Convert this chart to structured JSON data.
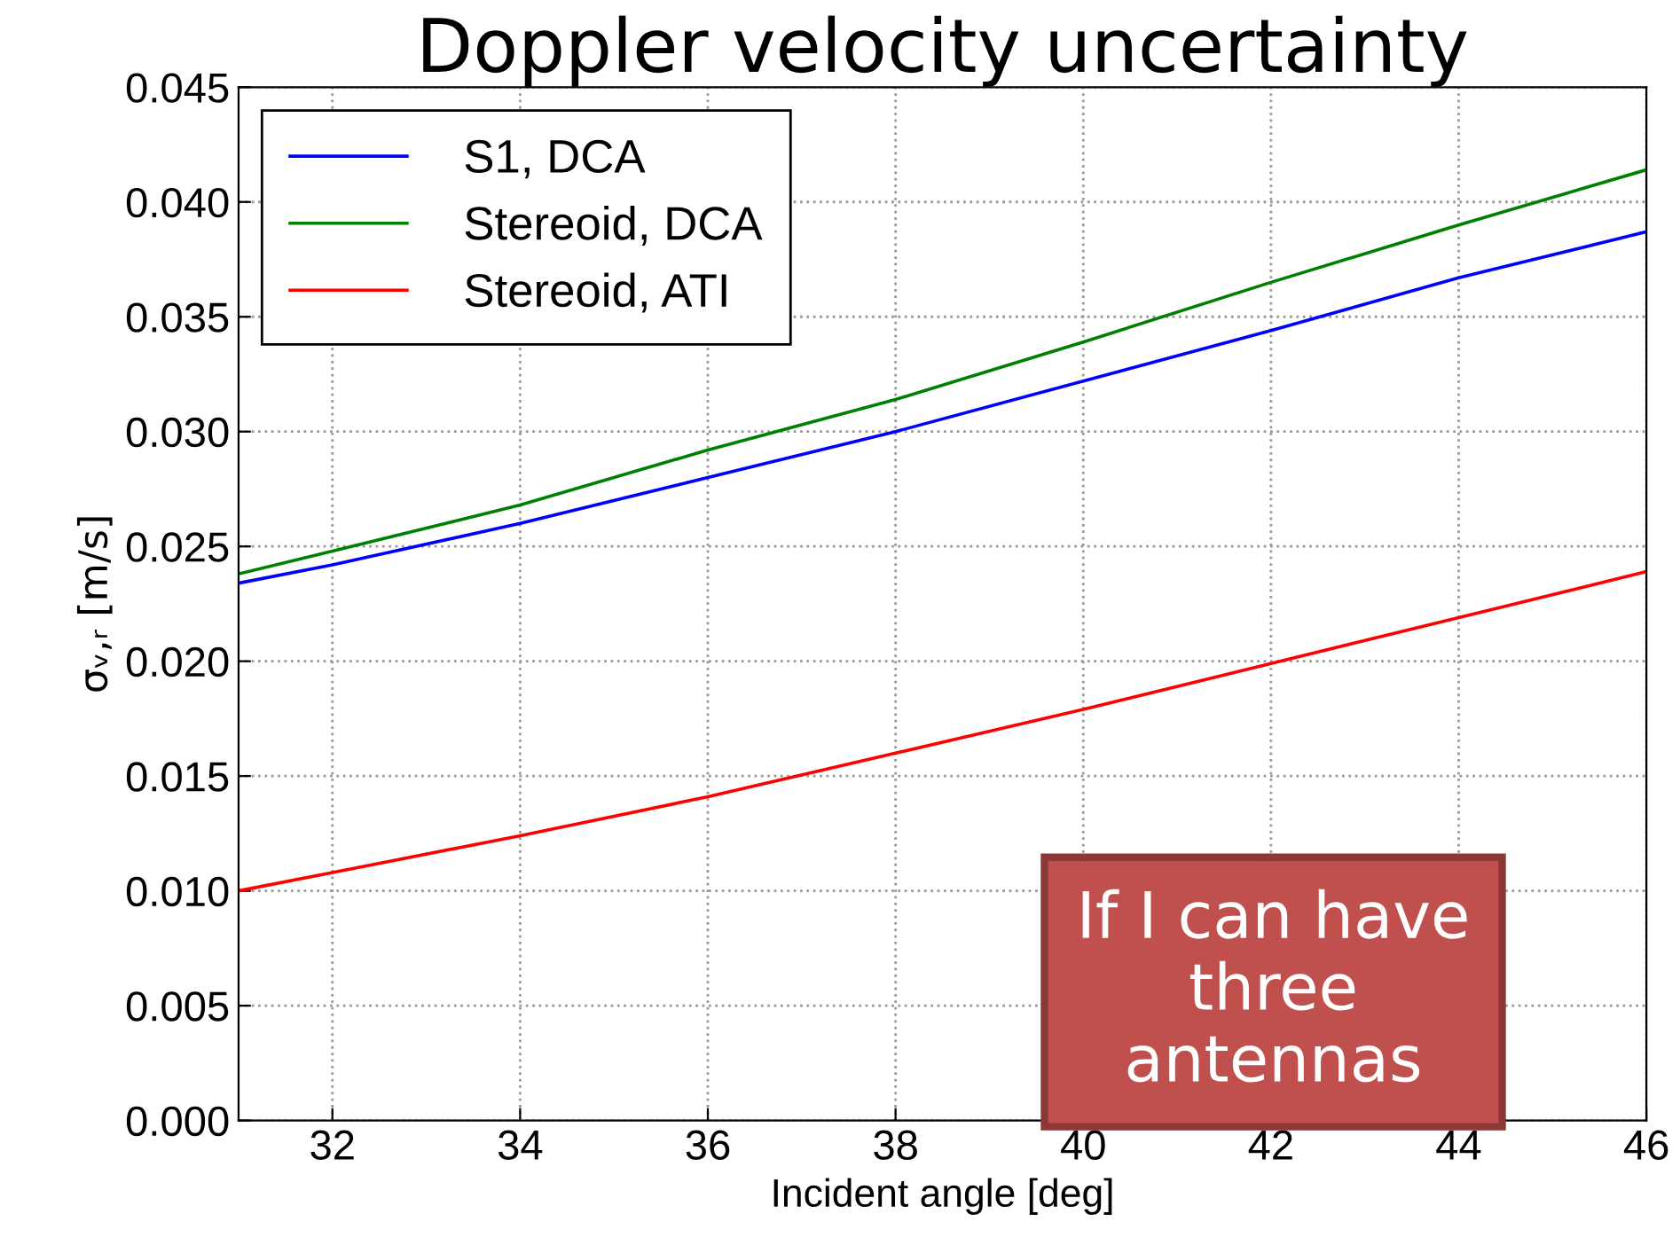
{
  "chart_data": {
    "type": "line",
    "title": "Doppler velocity uncertainty",
    "xlabel": "Incident angle [deg]",
    "ylabel": "σᵥ,ᵣ [m/s]",
    "x": [
      31,
      32,
      34,
      36,
      38,
      40,
      42,
      44,
      46
    ],
    "series": [
      {
        "name": "S1, DCA",
        "color": "#0000ff",
        "values": [
          0.0234,
          0.0242,
          0.026,
          0.028,
          0.03,
          0.0322,
          0.0344,
          0.0367,
          0.0387
        ]
      },
      {
        "name": "Stereoid, DCA",
        "color": "#008000",
        "values": [
          0.0238,
          0.0248,
          0.0268,
          0.0292,
          0.0314,
          0.0339,
          0.0365,
          0.039,
          0.0414
        ]
      },
      {
        "name": "Stereoid, ATI",
        "color": "#ff0000",
        "values": [
          0.01,
          0.0108,
          0.0124,
          0.0141,
          0.016,
          0.0179,
          0.0199,
          0.0219,
          0.0239
        ]
      }
    ],
    "xlim": [
      31,
      46
    ],
    "xticks": [
      32,
      34,
      36,
      38,
      40,
      42,
      44,
      46
    ],
    "ylim": [
      0,
      0.045
    ],
    "yticks": [
      {
        "value": 0,
        "label": "0.000"
      },
      {
        "value": 0.005,
        "label": "0.005"
      },
      {
        "value": 0.01,
        "label": "0.010"
      },
      {
        "value": 0.015,
        "label": "0.015"
      },
      {
        "value": 0.02,
        "label": "0.020"
      },
      {
        "value": 0.025,
        "label": "0.025"
      },
      {
        "value": 0.03,
        "label": "0.030"
      },
      {
        "value": 0.035,
        "label": "0.035"
      },
      {
        "value": 0.04,
        "label": "0.040"
      },
      {
        "value": 0.045,
        "label": "0.045"
      }
    ],
    "grid": true,
    "legend": "top left",
    "marker": "none",
    "line_style": "solid",
    "annotations": [
      "If I can have\nthree\nantennas"
    ]
  }
}
